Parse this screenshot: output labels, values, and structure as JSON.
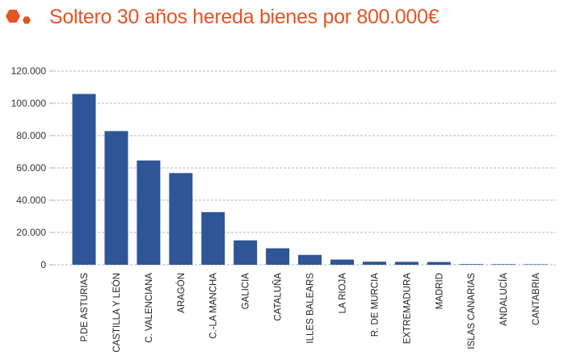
{
  "header": {
    "title": "Soltero 30 años hereda bienes por 800.000€",
    "accent_color": "#e25524",
    "logo_icon": "orange-hexagons-icon"
  },
  "chart_data": {
    "type": "bar",
    "title": "Soltero 30 años hereda bienes por 800.000€",
    "xlabel": "",
    "ylabel": "",
    "categories": [
      "P.DE ASTURIAS",
      "CASTILLA Y LEÓN",
      "C. VALENCIANA",
      "ARAGÓN",
      "C.-LA MANCHA",
      "GALICIA",
      "CATALUÑA",
      "ILLES BALEARS",
      "LA RIOJA",
      "R. DE MURCIA",
      "EXTREMADURA",
      "MADRID",
      "ISLAS CANARIAS",
      "ANDALUCÍA",
      "CANTABRIA"
    ],
    "values": [
      105800,
      82800,
      64600,
      56800,
      32600,
      15100,
      10200,
      6100,
      3200,
      1900,
      1800,
      1700,
      400,
      350,
      300
    ],
    "ylim": [
      0,
      120000
    ],
    "yticks": [
      0,
      20000,
      40000,
      60000,
      80000,
      100000,
      120000
    ],
    "ytick_labels": [
      "0",
      "20.000",
      "40.000",
      "60.000",
      "80.000",
      "100.000",
      "120.000"
    ],
    "bar_color": "#2e5597",
    "grid": "dashed horizontal",
    "legend": "none"
  }
}
